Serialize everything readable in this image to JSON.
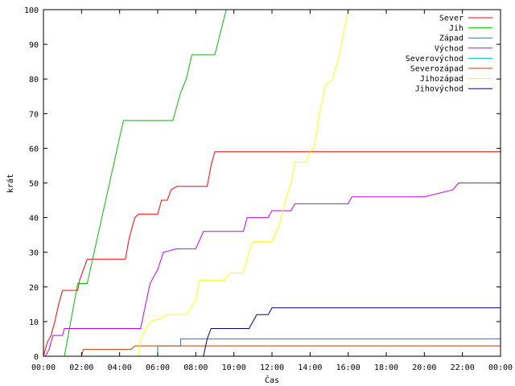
{
  "chart_data": {
    "type": "line",
    "title": "",
    "xlabel": "Čas",
    "ylabel": "krát",
    "xlim": [
      0,
      24
    ],
    "ylim": [
      0,
      100
    ],
    "x_ticks": [
      0,
      2,
      4,
      6,
      8,
      10,
      12,
      14,
      16,
      18,
      20,
      22,
      24
    ],
    "x_tick_labels": [
      "00:00",
      "02:00",
      "04:00",
      "06:00",
      "08:00",
      "10:00",
      "12:00",
      "14:00",
      "16:00",
      "18:00",
      "20:00",
      "22:00",
      "00:00"
    ],
    "y_ticks": [
      0,
      10,
      20,
      30,
      40,
      50,
      60,
      70,
      80,
      90,
      100
    ],
    "y_tick_labels": [
      "0",
      "10",
      "20",
      "30",
      "40",
      "50",
      "60",
      "70",
      "80",
      "90",
      "100"
    ],
    "grid": false,
    "legend_position": "top-right",
    "series": [
      {
        "name": "Sever",
        "color": "#ff0000",
        "points": [
          [
            0,
            0
          ],
          [
            0.1,
            2
          ],
          [
            0.2,
            4
          ],
          [
            0.4,
            6
          ],
          [
            0.5,
            8
          ],
          [
            0.6,
            10
          ],
          [
            0.8,
            15
          ],
          [
            1.0,
            19
          ],
          [
            1.8,
            19
          ],
          [
            1.9,
            22
          ],
          [
            2.1,
            25
          ],
          [
            2.3,
            28
          ],
          [
            4.3,
            28
          ],
          [
            4.5,
            34
          ],
          [
            4.8,
            40
          ],
          [
            5.0,
            41
          ],
          [
            6.0,
            41
          ],
          [
            6.2,
            45
          ],
          [
            6.5,
            45
          ],
          [
            6.7,
            48
          ],
          [
            7.0,
            49
          ],
          [
            8.6,
            49
          ],
          [
            8.8,
            55
          ],
          [
            9.0,
            59
          ],
          [
            14.0,
            59
          ],
          [
            24,
            59
          ]
        ]
      },
      {
        "name": "Jih",
        "color": "#00c000",
        "points": [
          [
            1.1,
            0
          ],
          [
            1.8,
            21
          ],
          [
            2.3,
            21
          ],
          [
            4.2,
            68
          ],
          [
            6.8,
            68
          ],
          [
            7.2,
            76
          ],
          [
            7.5,
            80
          ],
          [
            7.8,
            87
          ],
          [
            9.0,
            87
          ],
          [
            9.6,
            100
          ]
        ]
      },
      {
        "name": "Západ",
        "color": "#0080ff",
        "points": [
          [
            6.0,
            0
          ],
          [
            6.0,
            3
          ],
          [
            7.2,
            3
          ],
          [
            7.2,
            5
          ],
          [
            24,
            5
          ]
        ]
      },
      {
        "name": "Východ",
        "color": "#c000ff",
        "points": [
          [
            0.1,
            0
          ],
          [
            0.3,
            2
          ],
          [
            0.5,
            6
          ],
          [
            1.0,
            6
          ],
          [
            1.1,
            8
          ],
          [
            5.1,
            8
          ],
          [
            5.6,
            21
          ],
          [
            6.0,
            25
          ],
          [
            6.3,
            30
          ],
          [
            7.0,
            31
          ],
          [
            8.0,
            31
          ],
          [
            8.4,
            36
          ],
          [
            10.5,
            36
          ],
          [
            10.7,
            40
          ],
          [
            11.8,
            40
          ],
          [
            12.0,
            42
          ],
          [
            13.0,
            42
          ],
          [
            13.2,
            44
          ],
          [
            16.0,
            44
          ],
          [
            16.2,
            46
          ],
          [
            20.0,
            46
          ],
          [
            21.5,
            48
          ],
          [
            21.8,
            50
          ],
          [
            24,
            50
          ]
        ]
      },
      {
        "name": "Severovýchod",
        "color": "#00c0c0",
        "points": [
          [
            24,
            0
          ]
        ]
      },
      {
        "name": "Severozápad",
        "color": "#c04000",
        "points": [
          [
            2.0,
            0
          ],
          [
            2.1,
            2
          ],
          [
            4.6,
            2
          ],
          [
            4.8,
            3
          ],
          [
            24,
            3
          ]
        ]
      },
      {
        "name": "Jihozápad",
        "color": "#ffff00",
        "points": [
          [
            5.0,
            0
          ],
          [
            5.1,
            5
          ],
          [
            5.4,
            8
          ],
          [
            5.6,
            10
          ],
          [
            6.2,
            11
          ],
          [
            6.5,
            12
          ],
          [
            7.5,
            12
          ],
          [
            8.0,
            16
          ],
          [
            8.2,
            22
          ],
          [
            9.5,
            22
          ],
          [
            9.8,
            24
          ],
          [
            10.5,
            24
          ],
          [
            10.8,
            30
          ],
          [
            11.0,
            33
          ],
          [
            12.0,
            33
          ],
          [
            12.4,
            38
          ],
          [
            12.6,
            43
          ],
          [
            13.0,
            50
          ],
          [
            13.2,
            56
          ],
          [
            13.8,
            56
          ],
          [
            14.0,
            59
          ],
          [
            14.2,
            60
          ],
          [
            14.5,
            70
          ],
          [
            14.8,
            78
          ],
          [
            15.2,
            80
          ],
          [
            15.5,
            86
          ],
          [
            15.8,
            94
          ],
          [
            16.0,
            100
          ]
        ]
      },
      {
        "name": "Jihovýchod",
        "color": "#000080",
        "points": [
          [
            8.4,
            0
          ],
          [
            8.6,
            5
          ],
          [
            8.8,
            8
          ],
          [
            10.8,
            8
          ],
          [
            11.0,
            10
          ],
          [
            11.2,
            12
          ],
          [
            11.8,
            12
          ],
          [
            12.0,
            14
          ],
          [
            24,
            14
          ]
        ]
      }
    ]
  }
}
